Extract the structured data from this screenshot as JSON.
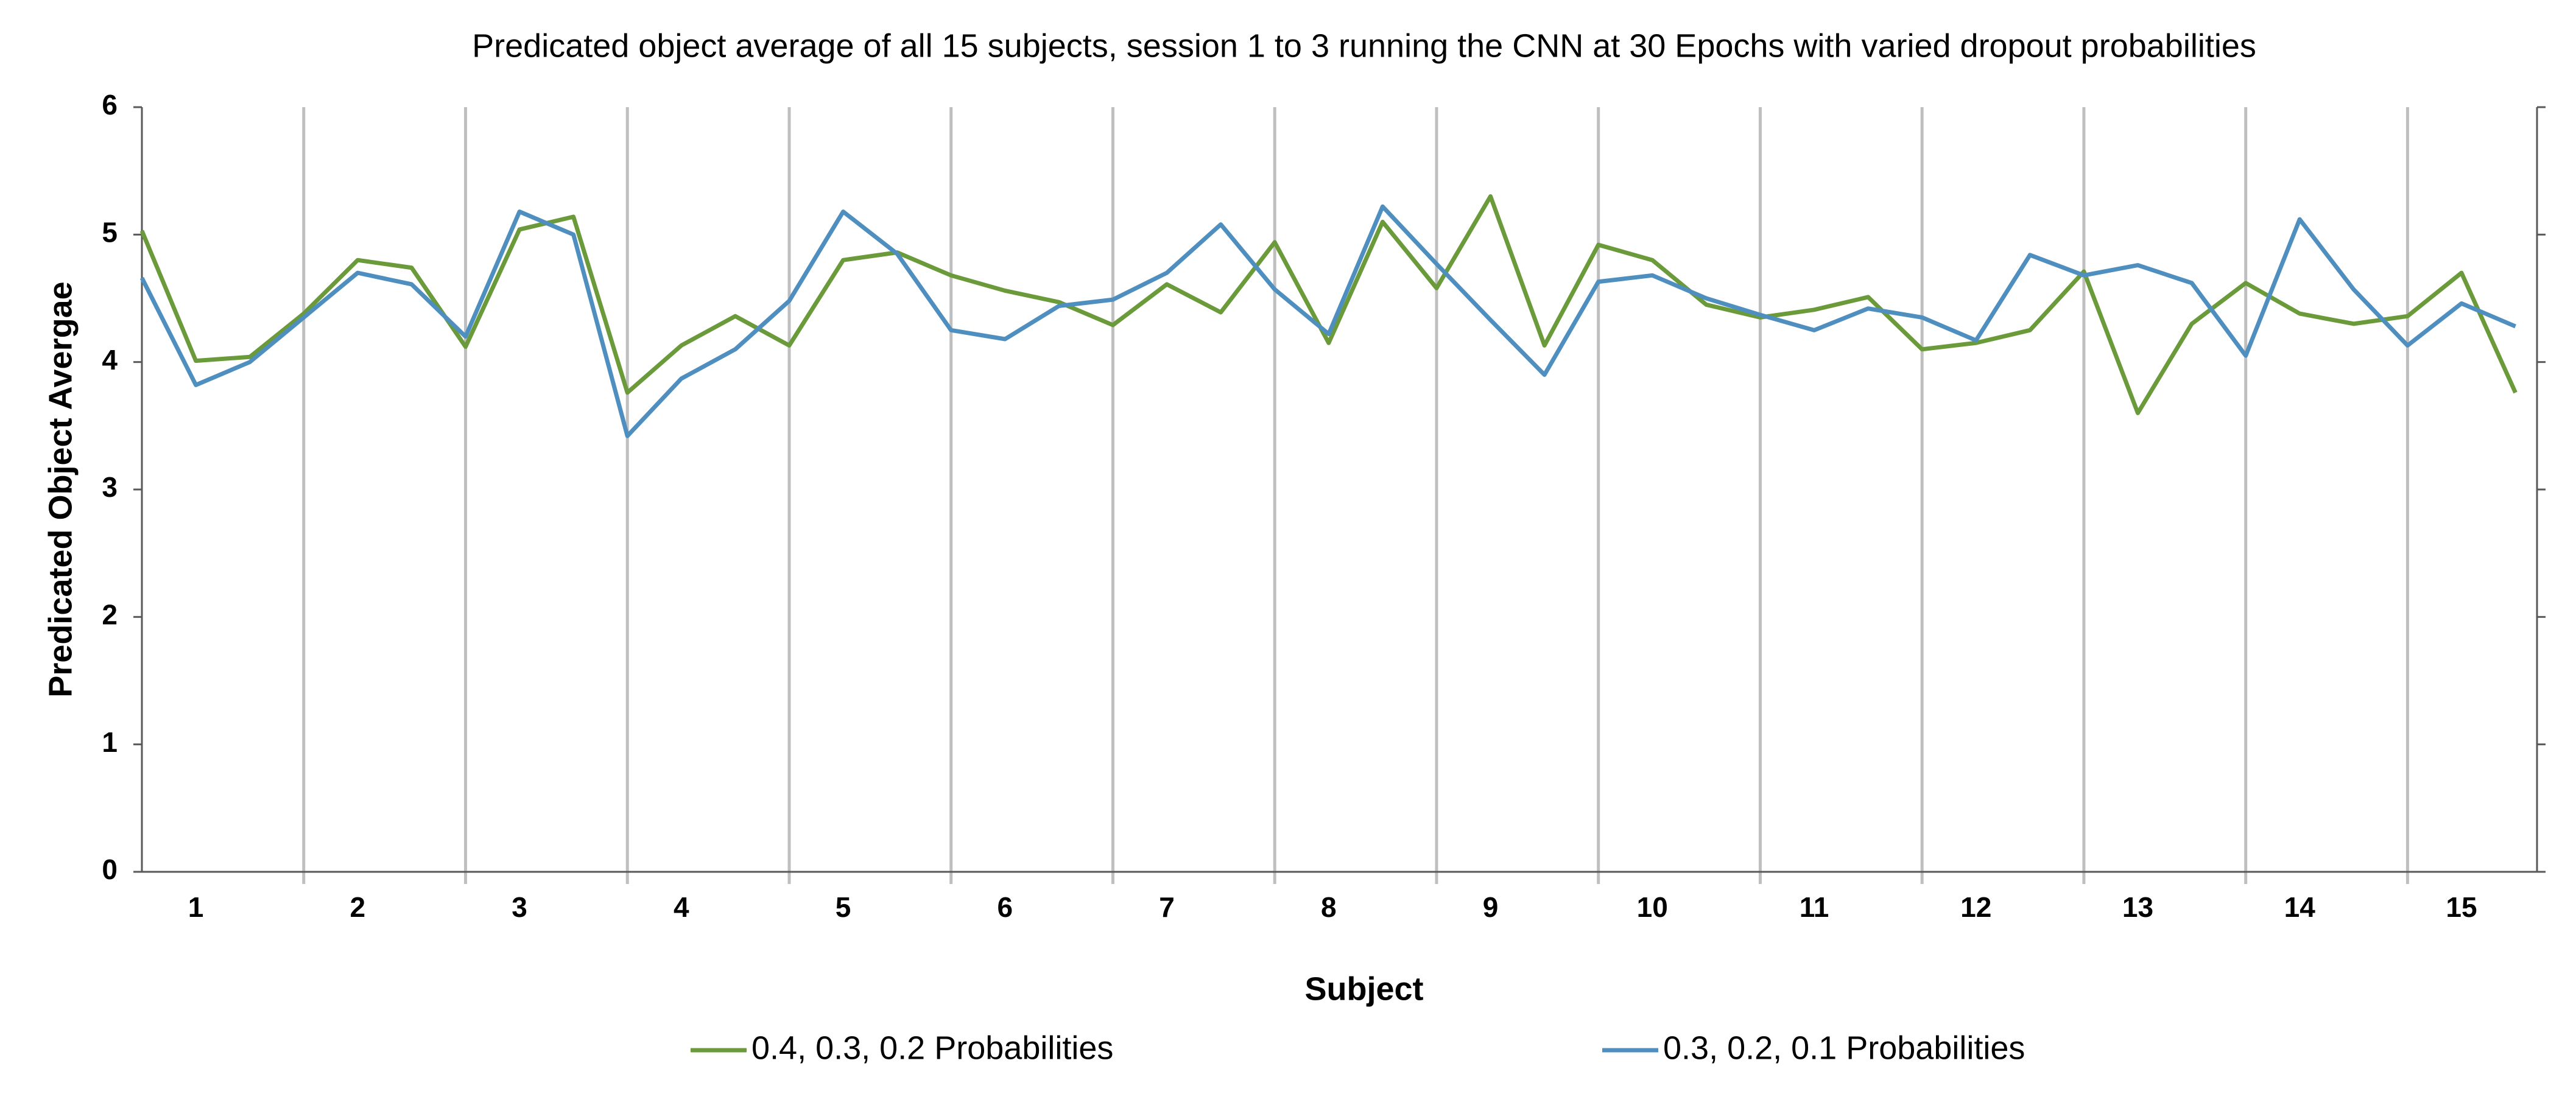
{
  "chart_data": {
    "type": "line",
    "title": "Predicated object average of all 15 subjects, session 1 to 3 running the CNN at 30 Epochs with varied dropout probabilities",
    "x_label": "Subject",
    "y_label": "Predicated Object Avergae",
    "categories": [
      null,
      "1",
      null,
      null,
      "2",
      null,
      null,
      "3",
      null,
      null,
      "4",
      null,
      null,
      "5",
      null,
      null,
      "6",
      null,
      null,
      "7",
      null,
      null,
      "8",
      null,
      null,
      "9",
      null,
      null,
      "10",
      null,
      null,
      "11",
      null,
      null,
      "12",
      null,
      null,
      "13",
      null,
      null,
      "14",
      null,
      null,
      "15",
      null
    ],
    "series": [
      {
        "name": "0.4, 0.3, 0.2 Probabilities",
        "color": "#6a9a3a",
        "values": [
          5.03,
          4.01,
          4.04,
          4.38,
          4.8,
          4.74,
          4.12,
          5.04,
          5.14,
          3.76,
          4.13,
          4.36,
          4.13,
          4.8,
          4.86,
          4.68,
          4.56,
          4.47,
          4.29,
          4.61,
          4.39,
          4.94,
          4.15,
          5.1,
          4.58,
          5.3,
          4.13,
          4.92,
          4.8,
          4.45,
          4.35,
          4.41,
          4.51,
          4.1,
          4.15,
          4.25,
          4.71,
          3.6,
          4.3,
          4.62,
          4.38,
          4.3,
          4.36,
          4.7,
          3.76
        ]
      },
      {
        "name": "0.3, 0.2, 0.1 Probabilities",
        "color": "#4f8fc0",
        "values": [
          4.66,
          3.82,
          4.0,
          4.35,
          4.7,
          4.61,
          4.2,
          5.18,
          5.0,
          3.42,
          3.87,
          4.1,
          4.48,
          5.18,
          4.85,
          4.25,
          4.18,
          4.44,
          4.49,
          4.7,
          5.08,
          4.57,
          4.22,
          5.22,
          4.77,
          4.33,
          3.9,
          4.63,
          4.68,
          4.5,
          4.37,
          4.25,
          4.42,
          4.35,
          4.17,
          4.84,
          4.68,
          4.76,
          4.62,
          4.05,
          5.12,
          4.57,
          4.13,
          4.46,
          4.28
        ]
      }
    ],
    "ylim": [
      0,
      6
    ],
    "yticks": [
      0,
      1,
      2,
      3,
      4,
      5,
      6
    ],
    "legend": "bottom"
  }
}
